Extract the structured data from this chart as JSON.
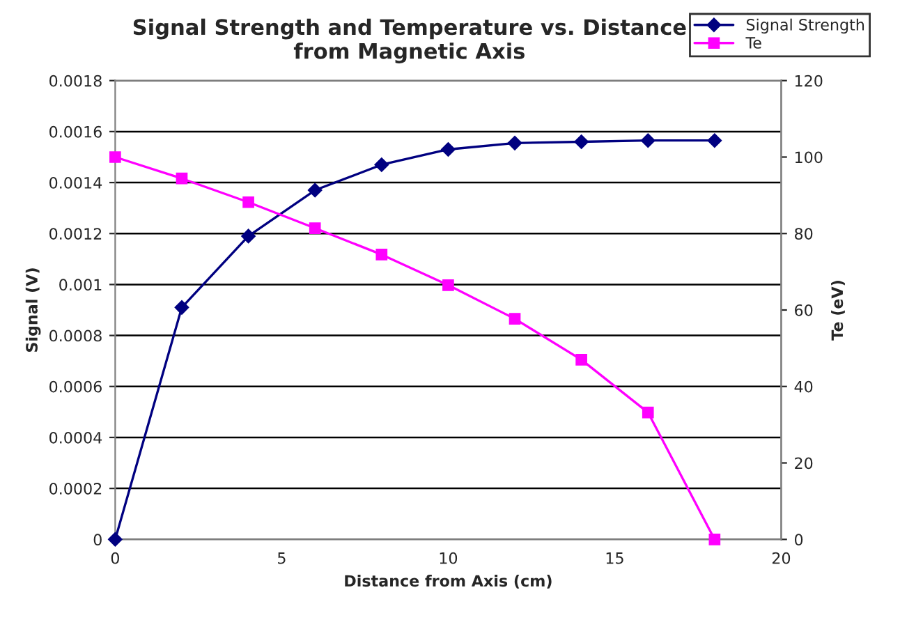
{
  "chart_data": {
    "type": "line",
    "title": "Signal Strength and Temperature vs. Distance\nfrom Magnetic Axis",
    "xlabel": "Distance from Axis (cm)",
    "ylabel": "Signal (V)",
    "y2label": "Te (eV)",
    "x": [
      0,
      2,
      4,
      6,
      8,
      10,
      12,
      14,
      16,
      18
    ],
    "series": [
      {
        "name": "Signal Strength",
        "color": "#000080",
        "marker": "diamond",
        "values": [
          0,
          0.00091,
          0.00119,
          0.00137,
          0.00147,
          0.00153,
          0.001555,
          0.00156,
          0.001565,
          0.001565
        ]
      },
      {
        "name": "Te",
        "color": "#ff00ff",
        "marker": "square",
        "axis": "y2",
        "values": [
          100,
          94.4,
          88.2,
          81.4,
          74.5,
          66.5,
          57.7,
          47.0,
          33.2,
          0
        ]
      }
    ],
    "xlim": [
      0,
      20
    ],
    "xticks": [
      0,
      5,
      10,
      15,
      20
    ],
    "ylim": [
      0,
      0.0018
    ],
    "yticks": [
      0,
      0.0002,
      0.0004,
      0.0006,
      0.0008,
      0.001,
      0.0012,
      0.0014,
      0.0016,
      0.0018
    ],
    "y2lim": [
      0,
      120
    ],
    "y2ticks": [
      0,
      20,
      40,
      60,
      80,
      100,
      120
    ],
    "grid": "y",
    "legend": "top right",
    "line_style": "solid"
  }
}
